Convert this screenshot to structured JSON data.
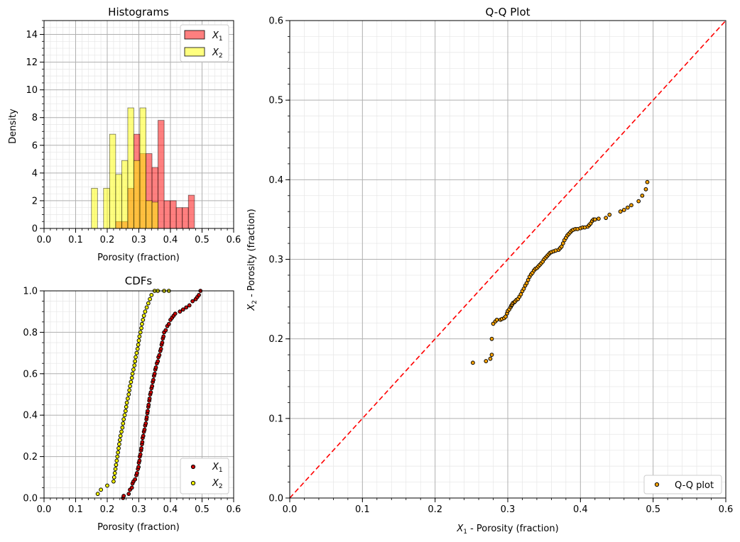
{
  "chart_data": [
    {
      "id": "hist",
      "type": "bar",
      "title": "Histograms",
      "xlabel": "Porosity (fraction)",
      "ylabel": "Density",
      "xlim": [
        0.0,
        0.6
      ],
      "ylim": [
        0,
        15
      ],
      "xticks": [
        "0.0",
        "0.1",
        "0.2",
        "0.3",
        "0.4",
        "0.5",
        "0.6"
      ],
      "yticks": [
        "0",
        "2",
        "4",
        "6",
        "8",
        "10",
        "12",
        "14"
      ],
      "grid": true,
      "legend_position": "upper right",
      "bin_edges": [
        0.15,
        0.1692,
        0.1883,
        0.2075,
        0.2267,
        0.2458,
        0.265,
        0.2842,
        0.3033,
        0.3225,
        0.3417,
        0.3608,
        0.38,
        0.3992,
        0.4183,
        0.4375,
        0.4567,
        0.4758,
        0.495
      ],
      "series": [
        {
          "name": "X",
          "sub": "1",
          "color": "#ff0000",
          "values": [
            0,
            0,
            0,
            0,
            0.5,
            0.5,
            2.9,
            6.8,
            5.4,
            5.4,
            4.4,
            7.8,
            2.0,
            2.0,
            1.5,
            1.5,
            2.4
          ]
        },
        {
          "name": "X",
          "sub": "2",
          "color": "#ffff00",
          "values": [
            2.9,
            0,
            2.9,
            6.8,
            3.9,
            4.9,
            8.7,
            4.9,
            8.7,
            2.0,
            1.9,
            0,
            0,
            0,
            0,
            0,
            0
          ]
        }
      ]
    },
    {
      "id": "cdf",
      "type": "scatter",
      "title": "CDFs",
      "xlabel": "Porosity (fraction)",
      "ylabel": "",
      "xlim": [
        0.0,
        0.6
      ],
      "ylim": [
        0.0,
        1.0
      ],
      "xticks": [
        "0.0",
        "0.1",
        "0.2",
        "0.3",
        "0.4",
        "0.5",
        "0.6"
      ],
      "yticks": [
        "0.0",
        "0.2",
        "0.4",
        "0.6",
        "0.8",
        "1.0"
      ],
      "grid": true,
      "legend_position": "lower right",
      "series": [
        {
          "name": "X",
          "sub": "1",
          "color": "#cc0000",
          "points": [
            [
              0.25,
              0.0
            ],
            [
              0.252,
              0.01
            ],
            [
              0.268,
              0.02
            ],
            [
              0.272,
              0.04
            ],
            [
              0.278,
              0.05
            ],
            [
              0.28,
              0.07
            ],
            [
              0.283,
              0.08
            ],
            [
              0.288,
              0.09
            ],
            [
              0.292,
              0.11
            ],
            [
              0.294,
              0.12
            ],
            [
              0.297,
              0.14
            ],
            [
              0.299,
              0.15
            ],
            [
              0.3,
              0.17
            ],
            [
              0.302,
              0.18
            ],
            [
              0.303,
              0.2
            ],
            [
              0.305,
              0.21
            ],
            [
              0.307,
              0.23
            ],
            [
              0.308,
              0.24
            ],
            [
              0.31,
              0.26
            ],
            [
              0.311,
              0.27
            ],
            [
              0.312,
              0.29
            ],
            [
              0.314,
              0.3
            ],
            [
              0.316,
              0.32
            ],
            [
              0.318,
              0.33
            ],
            [
              0.32,
              0.35
            ],
            [
              0.322,
              0.36
            ],
            [
              0.324,
              0.38
            ],
            [
              0.325,
              0.39
            ],
            [
              0.327,
              0.41
            ],
            [
              0.328,
              0.42
            ],
            [
              0.33,
              0.44
            ],
            [
              0.331,
              0.45
            ],
            [
              0.333,
              0.47
            ],
            [
              0.334,
              0.48
            ],
            [
              0.336,
              0.5
            ],
            [
              0.338,
              0.51
            ],
            [
              0.34,
              0.53
            ],
            [
              0.342,
              0.54
            ],
            [
              0.344,
              0.56
            ],
            [
              0.346,
              0.57
            ],
            [
              0.348,
              0.59
            ],
            [
              0.35,
              0.6
            ],
            [
              0.352,
              0.62
            ],
            [
              0.354,
              0.63
            ],
            [
              0.357,
              0.65
            ],
            [
              0.36,
              0.66
            ],
            [
              0.362,
              0.68
            ],
            [
              0.365,
              0.69
            ],
            [
              0.368,
              0.71
            ],
            [
              0.37,
              0.72
            ],
            [
              0.372,
              0.74
            ],
            [
              0.374,
              0.75
            ],
            [
              0.376,
              0.77
            ],
            [
              0.378,
              0.78
            ],
            [
              0.38,
              0.8
            ],
            [
              0.385,
              0.81
            ],
            [
              0.39,
              0.83
            ],
            [
              0.395,
              0.84
            ],
            [
              0.4,
              0.86
            ],
            [
              0.405,
              0.87
            ],
            [
              0.41,
              0.88
            ],
            [
              0.415,
              0.89
            ],
            [
              0.43,
              0.9
            ],
            [
              0.44,
              0.91
            ],
            [
              0.45,
              0.92
            ],
            [
              0.46,
              0.93
            ],
            [
              0.47,
              0.95
            ],
            [
              0.48,
              0.96
            ],
            [
              0.485,
              0.97
            ],
            [
              0.49,
              0.98
            ],
            [
              0.495,
              1.0
            ]
          ]
        },
        {
          "name": "X",
          "sub": "2",
          "color": "#ffff00",
          "points": [
            [
              0.17,
              0.02
            ],
            [
              0.18,
              0.04
            ],
            [
              0.2,
              0.06
            ],
            [
              0.22,
              0.08
            ],
            [
              0.222,
              0.1
            ],
            [
              0.224,
              0.12
            ],
            [
              0.226,
              0.14
            ],
            [
              0.228,
              0.16
            ],
            [
              0.23,
              0.18
            ],
            [
              0.232,
              0.2
            ],
            [
              0.234,
              0.22
            ],
            [
              0.236,
              0.24
            ],
            [
              0.238,
              0.26
            ],
            [
              0.24,
              0.28
            ],
            [
              0.242,
              0.3
            ],
            [
              0.245,
              0.32
            ],
            [
              0.248,
              0.34
            ],
            [
              0.25,
              0.36
            ],
            [
              0.252,
              0.38
            ],
            [
              0.255,
              0.4
            ],
            [
              0.258,
              0.42
            ],
            [
              0.26,
              0.44
            ],
            [
              0.262,
              0.46
            ],
            [
              0.265,
              0.48
            ],
            [
              0.268,
              0.5
            ],
            [
              0.27,
              0.52
            ],
            [
              0.272,
              0.54
            ],
            [
              0.275,
              0.56
            ],
            [
              0.278,
              0.58
            ],
            [
              0.28,
              0.6
            ],
            [
              0.283,
              0.62
            ],
            [
              0.286,
              0.64
            ],
            [
              0.288,
              0.66
            ],
            [
              0.29,
              0.68
            ],
            [
              0.293,
              0.7
            ],
            [
              0.296,
              0.72
            ],
            [
              0.298,
              0.74
            ],
            [
              0.3,
              0.76
            ],
            [
              0.302,
              0.78
            ],
            [
              0.305,
              0.8
            ],
            [
              0.308,
              0.82
            ],
            [
              0.31,
              0.84
            ],
            [
              0.313,
              0.86
            ],
            [
              0.316,
              0.88
            ],
            [
              0.32,
              0.9
            ],
            [
              0.325,
              0.92
            ],
            [
              0.33,
              0.94
            ],
            [
              0.335,
              0.96
            ],
            [
              0.34,
              0.98
            ],
            [
              0.35,
              1.0
            ],
            [
              0.36,
              1.0
            ],
            [
              0.38,
              1.0
            ],
            [
              0.395,
              1.0
            ]
          ]
        }
      ]
    },
    {
      "id": "qq",
      "type": "scatter",
      "title": "Q-Q Plot",
      "xlabel_main": "X",
      "xlabel_sub": "1",
      "xlabel_rest": " - Porosity (fraction)",
      "ylabel_main": "X",
      "ylabel_sub": "2",
      "ylabel_rest": " - Porosity (fraction)",
      "xlim": [
        0.0,
        0.6
      ],
      "ylim": [
        0.0,
        0.6
      ],
      "xticks": [
        "0.0",
        "0.1",
        "0.2",
        "0.3",
        "0.4",
        "0.5",
        "0.6"
      ],
      "yticks": [
        "0.0",
        "0.1",
        "0.2",
        "0.3",
        "0.4",
        "0.5",
        "0.6"
      ],
      "grid": true,
      "legend_position": "lower right",
      "reference_line": {
        "from": [
          0.0,
          0.0
        ],
        "to": [
          0.6,
          0.6
        ],
        "color": "#ff0000",
        "style": "dashed"
      },
      "series": [
        {
          "name": "Q-Q plot",
          "color": "#ffa500",
          "points": [
            [
              0.252,
              0.17
            ],
            [
              0.27,
              0.172
            ],
            [
              0.276,
              0.175
            ],
            [
              0.278,
              0.18
            ],
            [
              0.278,
              0.2
            ],
            [
              0.28,
              0.219
            ],
            [
              0.283,
              0.222
            ],
            [
              0.285,
              0.224
            ],
            [
              0.29,
              0.224
            ],
            [
              0.292,
              0.225
            ],
            [
              0.295,
              0.226
            ],
            [
              0.297,
              0.228
            ],
            [
              0.299,
              0.232
            ],
            [
              0.3,
              0.235
            ],
            [
              0.302,
              0.237
            ],
            [
              0.304,
              0.24
            ],
            [
              0.305,
              0.242
            ],
            [
              0.306,
              0.243
            ],
            [
              0.307,
              0.245
            ],
            [
              0.309,
              0.246
            ],
            [
              0.31,
              0.247
            ],
            [
              0.312,
              0.249
            ],
            [
              0.314,
              0.25
            ],
            [
              0.316,
              0.253
            ],
            [
              0.318,
              0.256
            ],
            [
              0.32,
              0.26
            ],
            [
              0.322,
              0.263
            ],
            [
              0.324,
              0.267
            ],
            [
              0.326,
              0.27
            ],
            [
              0.328,
              0.274
            ],
            [
              0.33,
              0.278
            ],
            [
              0.332,
              0.281
            ],
            [
              0.334,
              0.283
            ],
            [
              0.336,
              0.286
            ],
            [
              0.338,
              0.288
            ],
            [
              0.34,
              0.289
            ],
            [
              0.342,
              0.291
            ],
            [
              0.344,
              0.293
            ],
            [
              0.346,
              0.295
            ],
            [
              0.348,
              0.297
            ],
            [
              0.35,
              0.3
            ],
            [
              0.352,
              0.302
            ],
            [
              0.354,
              0.304
            ],
            [
              0.356,
              0.306
            ],
            [
              0.358,
              0.308
            ],
            [
              0.36,
              0.309
            ],
            [
              0.363,
              0.31
            ],
            [
              0.366,
              0.311
            ],
            [
              0.37,
              0.312
            ],
            [
              0.372,
              0.314
            ],
            [
              0.374,
              0.316
            ],
            [
              0.376,
              0.32
            ],
            [
              0.378,
              0.324
            ],
            [
              0.38,
              0.327
            ],
            [
              0.382,
              0.33
            ],
            [
              0.384,
              0.332
            ],
            [
              0.386,
              0.334
            ],
            [
              0.388,
              0.336
            ],
            [
              0.39,
              0.337
            ],
            [
              0.393,
              0.338
            ],
            [
              0.396,
              0.338
            ],
            [
              0.4,
              0.339
            ],
            [
              0.403,
              0.34
            ],
            [
              0.406,
              0.34
            ],
            [
              0.41,
              0.341
            ],
            [
              0.412,
              0.343
            ],
            [
              0.414,
              0.345
            ],
            [
              0.416,
              0.348
            ],
            [
              0.418,
              0.35
            ],
            [
              0.42,
              0.35
            ],
            [
              0.425,
              0.351
            ],
            [
              0.435,
              0.352
            ],
            [
              0.44,
              0.356
            ],
            [
              0.455,
              0.36
            ],
            [
              0.46,
              0.362
            ],
            [
              0.465,
              0.365
            ],
            [
              0.47,
              0.368
            ],
            [
              0.48,
              0.373
            ],
            [
              0.485,
              0.38
            ],
            [
              0.49,
              0.388
            ],
            [
              0.492,
              0.397
            ]
          ]
        }
      ]
    }
  ]
}
